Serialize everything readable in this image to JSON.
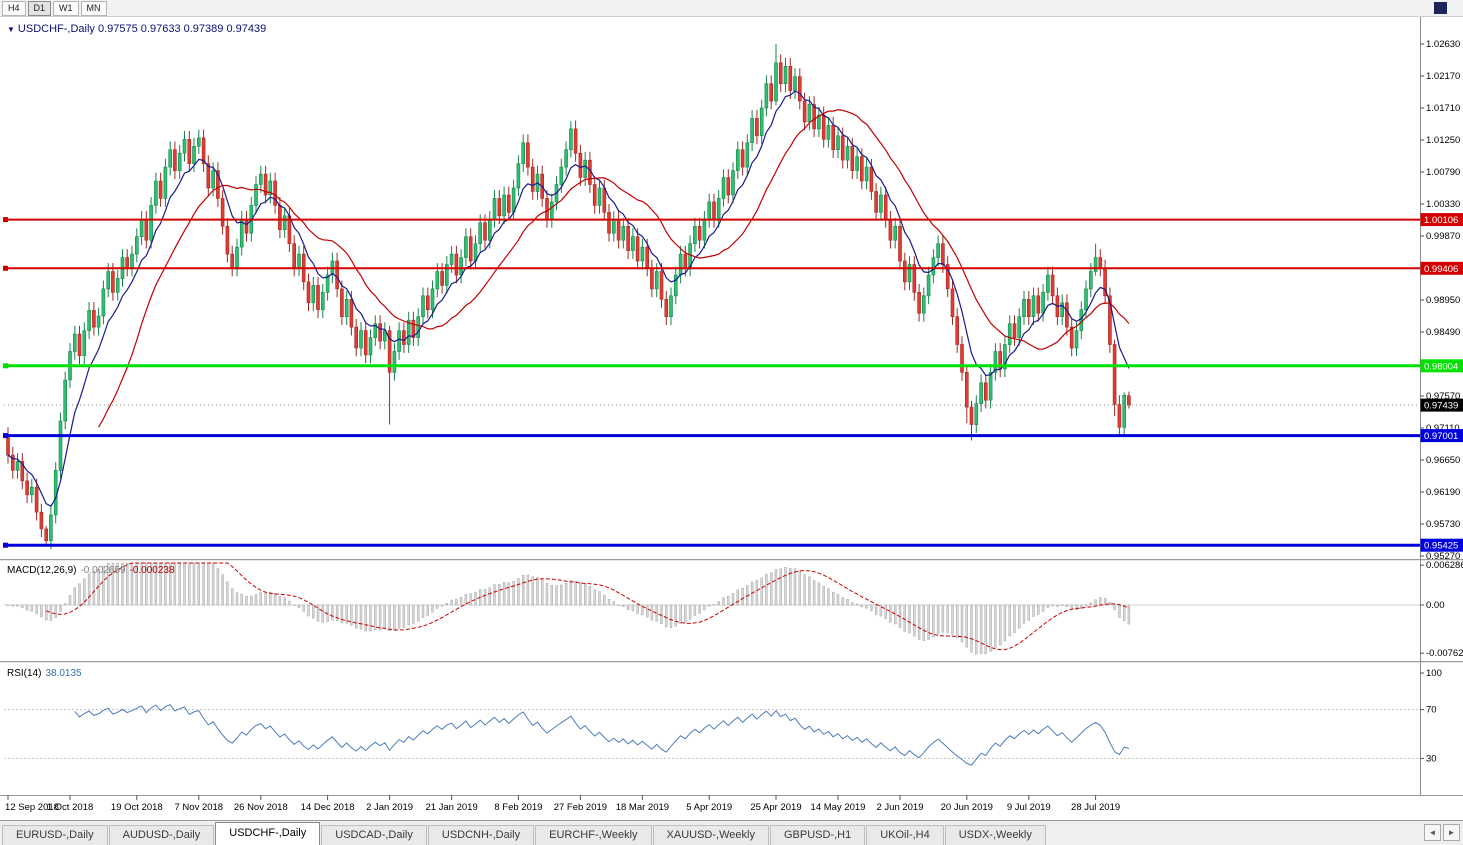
{
  "toolbar": {
    "timeframes": [
      "H4",
      "D1",
      "W1",
      "MN"
    ],
    "active": "D1"
  },
  "tabs": {
    "items": [
      "EURUSD-,Daily",
      "AUDUSD-,Daily",
      "USDCHF-,Daily",
      "USDCAD-,Daily",
      "USDCNH-,Daily",
      "EURCHF-,Weekly",
      "XAUUSD-,Weekly",
      "GBPUSD-,H1",
      "UKOil-,H4",
      "USDX-,Weekly"
    ],
    "active_index": 2,
    "scroll_left_icon": "◄",
    "scroll_right_icon": "►"
  },
  "chart_data": {
    "type": "candlestick",
    "symbol": "USDCHF-",
    "timeframe": "Daily",
    "title_line": {
      "collapse_icon": "▼",
      "symbol": "USDCHF-,Daily",
      "ohlc": "0.97575 0.97633 0.97389 0.97439"
    },
    "last_candle": {
      "open": 0.97575,
      "high": 0.97633,
      "low": 0.97389,
      "close": 0.97439
    },
    "up_color": "#2fbf71",
    "up_border": "#15854c",
    "down_color": "#e23b32",
    "down_border": "#9e2a24",
    "price_axis": {
      "tick_labels": [
        "1.02630",
        "1.02170",
        "1.01710",
        "1.01250",
        "1.00790",
        "1.00330",
        "0.99870",
        "0.99410",
        "0.98950",
        "0.98490",
        "0.98030",
        "0.97570",
        "0.97110",
        "0.96650",
        "0.96190",
        "0.95730",
        "0.95270"
      ]
    },
    "hlines": [
      {
        "value": 1.00106,
        "label": "1.00106",
        "color": "#d40000",
        "width": 2
      },
      {
        "value": 0.99406,
        "label": "0.99406",
        "color": "#d40000",
        "width": 2
      },
      {
        "value": 0.98004,
        "label": "0.98004",
        "color": "#00e100",
        "width": 3
      },
      {
        "value": 0.97001,
        "label": "0.97001",
        "color": "#0000dc",
        "width": 3
      },
      {
        "value": 0.95425,
        "label": "0.95425",
        "color": "#0000dc",
        "width": 3
      }
    ],
    "price_tag": {
      "value": 0.97439,
      "label": "0.97439",
      "color": "#000000"
    },
    "date_axis": {
      "ticks": [
        {
          "label": "12 Sep 2018",
          "index": 0
        },
        {
          "label": "1 Oct 2018",
          "index": 13
        },
        {
          "label": "19 Oct 2018",
          "index": 27
        },
        {
          "label": "7 Nov 2018",
          "index": 40
        },
        {
          "label": "26 Nov 2018",
          "index": 53
        },
        {
          "label": "14 Dec 2018",
          "index": 67
        },
        {
          "label": "2 Jan 2019",
          "index": 80
        },
        {
          "label": "21 Jan 2019",
          "index": 93
        },
        {
          "label": "8 Feb 2019",
          "index": 107
        },
        {
          "label": "27 Feb 2019",
          "index": 120
        },
        {
          "label": "18 Mar 2019",
          "index": 133
        },
        {
          "label": "5 Apr 2019",
          "index": 147
        },
        {
          "label": "25 Apr 2019",
          "index": 161
        },
        {
          "label": "14 May 2019",
          "index": 174
        },
        {
          "label": "2 Jun 2019",
          "index": 187
        },
        {
          "label": "20 Jun 2019",
          "index": 201
        },
        {
          "label": "9 Jul 2019",
          "index": 214
        },
        {
          "label": "28 Jul 2019",
          "index": 228
        }
      ]
    },
    "candles": {
      "first_open": 0.97,
      "default_wick": 0.0012,
      "closes": [
        0.9672,
        0.965,
        0.9663,
        0.9635,
        0.9615,
        0.9626,
        0.959,
        0.9566,
        0.9549,
        0.9586,
        0.965,
        0.9721,
        0.978,
        0.9821,
        0.9846,
        0.9815,
        0.9851,
        0.988,
        0.9856,
        0.9872,
        0.9911,
        0.9936,
        0.9906,
        0.9926,
        0.9956,
        0.9941,
        0.9961,
        0.9986,
        1.0011,
        0.9981,
        1.0031,
        1.0066,
        1.0041,
        1.0086,
        1.0111,
        1.0081,
        1.0106,
        1.0126,
        1.0091,
        1.0116,
        1.0128,
        1.0091,
        1.0056,
        1.0081,
        1.0041,
        1.0001,
        0.9961,
        0.9941,
        0.9971,
        1.0011,
        0.9991,
        1.0031,
        1.0061,
        1.0076,
        1.0046,
        1.0066,
        1.0031,
        0.9996,
        1.0016,
        0.9976,
        0.9941,
        0.9961,
        0.9921,
        0.9891,
        0.9916,
        0.9881,
        0.9906,
        0.9931,
        0.9951,
        0.9911,
        0.9871,
        0.9896,
        0.9856,
        0.9826,
        0.9851,
        0.9816,
        0.9841,
        0.9861,
        0.9836,
        0.9851,
        0.9791,
        0.9821,
        0.9851,
        0.9831,
        0.9866,
        0.9841,
        0.9871,
        0.9901,
        0.9881,
        0.9911,
        0.9936,
        0.9916,
        0.9946,
        0.9961,
        0.9931,
        0.9956,
        0.9986,
        0.9951,
        0.9976,
        1.0006,
        0.9981,
        1.0011,
        1.0041,
        1.0016,
        1.0046,
        1.0021,
        1.0056,
        1.0091,
        1.0121,
        1.0086,
        1.0051,
        1.0076,
        1.0041,
        1.0011,
        1.0036,
        1.0061,
        1.0086,
        1.0111,
        1.0141,
        1.0106,
        1.0071,
        1.0096,
        1.0061,
        1.0031,
        1.0056,
        1.0021,
        0.9991,
        1.0011,
        0.9981,
        1.0001,
        0.9966,
        0.9986,
        0.9951,
        0.9971,
        0.9941,
        0.9911,
        0.9936,
        0.9896,
        0.9871,
        0.9901,
        0.9931,
        0.9961,
        0.9941,
        0.9976,
        1.0001,
        0.9981,
        1.0011,
        1.0036,
        1.0011,
        1.0041,
        1.0071,
        1.0046,
        1.0081,
        1.0111,
        1.0086,
        1.0121,
        1.0156,
        1.0131,
        1.0171,
        1.0206,
        1.0181,
        1.0236,
        1.0206,
        1.0231,
        1.0196,
        1.0216,
        1.0181,
        1.0151,
        1.0176,
        1.0141,
        1.0161,
        1.0126,
        1.0146,
        1.0111,
        1.0131,
        1.0096,
        1.0116,
        1.0081,
        1.0101,
        1.0066,
        1.0086,
        1.0051,
        1.0021,
        1.0046,
        1.0011,
        0.9981,
        1.0001,
        0.9951,
        0.9921,
        0.9946,
        0.9906,
        0.9876,
        0.9901,
        0.9931,
        0.9956,
        0.9976,
        0.9946,
        0.9911,
        0.9871,
        0.9831,
        0.9791,
        0.9741,
        0.9716,
        0.9746,
        0.9776,
        0.9751,
        0.9791,
        0.9821,
        0.9796,
        0.9831,
        0.9861,
        0.9841,
        0.9871,
        0.9896,
        0.9871,
        0.9901,
        0.9876,
        0.9906,
        0.9931,
        0.9901,
        0.9871,
        0.9891,
        0.9856,
        0.9826,
        0.9851,
        0.9881,
        0.9911,
        0.9936,
        0.9956,
        0.9941,
        0.9901,
        0.9831,
        0.9745,
        0.9712,
        0.9758,
        0.97439
      ],
      "overrides": {
        "8": [
          0.9566,
          0.957,
          0.95425,
          0.9549
        ],
        "40": [
          1.0116,
          1.014,
          1.0105,
          1.0128
        ],
        "80": [
          0.9851,
          0.9858,
          0.9716,
          0.9791
        ],
        "118": [
          1.0111,
          1.0152,
          1.01,
          1.0141
        ],
        "161": [
          1.0181,
          1.0263,
          1.0175,
          1.0236
        ],
        "201": [
          0.9791,
          0.98,
          0.9718,
          0.9741
        ],
        "202": [
          0.9741,
          0.975,
          0.9693,
          0.9716
        ],
        "228": [
          0.9936,
          0.9976,
          0.993,
          0.9956
        ],
        "232": [
          0.9831,
          0.9838,
          0.9728,
          0.9745
        ],
        "233": [
          0.9745,
          0.9758,
          0.97,
          0.9712
        ],
        "234": [
          0.9712,
          0.9762,
          0.9701,
          0.9758
        ],
        "235": [
          0.97575,
          0.97633,
          0.97389,
          0.97439
        ]
      }
    },
    "indicators": {
      "ma_fast": {
        "type": "ema",
        "period": 8,
        "color": "#1a1a8c"
      },
      "ma_slow": {
        "type": "sma",
        "period": 20,
        "color": "#c00000"
      },
      "macd": {
        "label": "MACD(12,26,9)",
        "fast": 12,
        "slow": 26,
        "signal": 9,
        "display_main": "-0.002659",
        "display_signal": "-0.000238",
        "histogram_color": "#d6d6d6",
        "histogram_border": "#9d9d9d",
        "signal_color": "#cc0000",
        "axis_ticks": [
          {
            "v": 0.006286,
            "label": "0.006286"
          },
          {
            "v": 0,
            "label": "0.00"
          },
          {
            "v": -0.00762,
            "label": "-0.00762"
          }
        ]
      },
      "rsi": {
        "label": "RSI(14)",
        "period": 14,
        "display_value": "38.0135",
        "color": "#4a7ebb",
        "levels": [
          70,
          30
        ],
        "axis_ticks": [
          {
            "v": 100,
            "label": "100"
          },
          {
            "v": 70,
            "label": "70"
          },
          {
            "v": 30,
            "label": "30"
          }
        ]
      }
    }
  }
}
